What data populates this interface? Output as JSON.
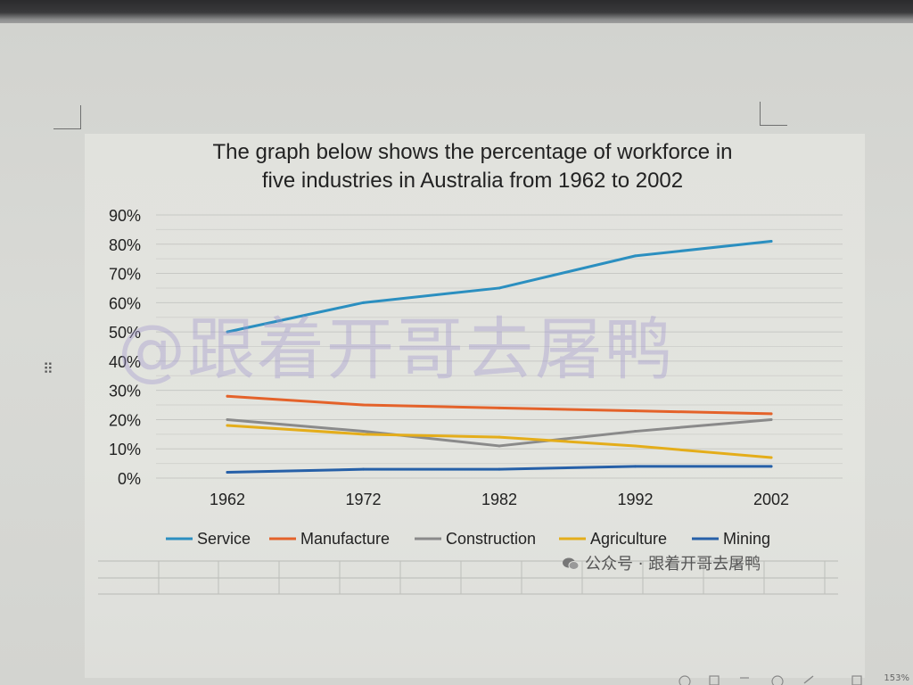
{
  "chart_data": {
    "type": "line",
    "title": "The graph below shows the percentage of workforce in five industries in Australia from 1962 to 2002",
    "title_lines": [
      "The graph below shows the percentage of workforce in",
      "five industries in Australia from 1962 to 2002"
    ],
    "xlabel": "",
    "ylabel": "",
    "categories": [
      "1962",
      "1972",
      "1982",
      "1992",
      "2002"
    ],
    "y_ticks": [
      "90%",
      "80%",
      "70%",
      "60%",
      "50%",
      "40%",
      "30%",
      "20%",
      "10%",
      "0%"
    ],
    "ylim": [
      0,
      90
    ],
    "grid": true,
    "legend_position": "bottom",
    "series": [
      {
        "name": "Service",
        "color": "#2b8fc0",
        "values": [
          50,
          60,
          65,
          76,
          81
        ]
      },
      {
        "name": "Manufacture",
        "color": "#e4622a",
        "values": [
          28,
          25,
          24,
          23,
          22
        ]
      },
      {
        "name": "Construction",
        "color": "#8a8a8a",
        "values": [
          20,
          16,
          11,
          16,
          20
        ]
      },
      {
        "name": "Agriculture",
        "color": "#e4ad1a",
        "values": [
          18,
          15,
          14,
          11,
          7
        ]
      },
      {
        "name": "Mining",
        "color": "#2660a8",
        "values": [
          2,
          3,
          3,
          4,
          4
        ]
      }
    ]
  },
  "watermark": "@跟着开哥去屠鸭",
  "footer_credit": "公众号 · 跟着开哥去屠鸭",
  "zoom_readout": "153%",
  "handle_glyph": "⠿"
}
